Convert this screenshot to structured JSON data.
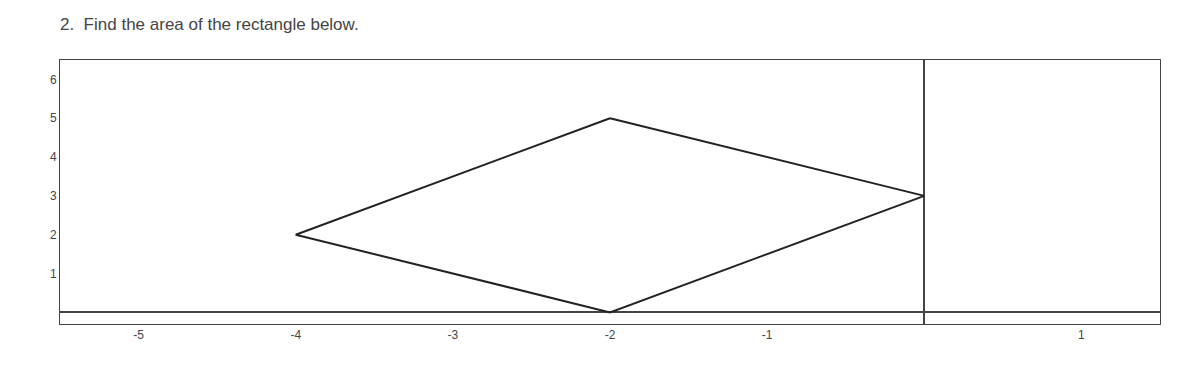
{
  "chart_data": {
    "type": "polygon",
    "title": "2.  Find the area of the rectangle below.",
    "x": [
      -2,
      0,
      -2,
      -4
    ],
    "values": [
      5,
      3,
      0,
      2
    ],
    "color": "#222222",
    "xlim": [
      -5.5,
      1.5
    ],
    "ylim": [
      -0.3,
      6.5
    ],
    "xticks": [
      -5,
      -4,
      -3,
      -2,
      -1,
      1
    ],
    "yticks": [
      1,
      2,
      3,
      4,
      5,
      6
    ],
    "grid": false
  }
}
